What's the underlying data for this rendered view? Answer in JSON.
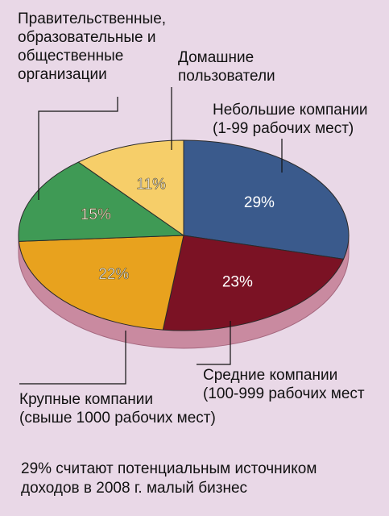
{
  "chart_data": {
    "type": "pie",
    "style": "3d",
    "slices": [
      {
        "key": "small",
        "label": "Небольшие компании\n(1-99 рабочих мест)",
        "value": 29,
        "value_label": "29%",
        "color": "#3a5a8c"
      },
      {
        "key": "medium",
        "label": "Средние компании\n(100-999 рабочих мест",
        "value": 23,
        "value_label": "23%",
        "color": "#7b1224"
      },
      {
        "key": "large",
        "label": "Крупные компании\n(свыше 1000 рабочих мест)",
        "value": 22,
        "value_label": "22%",
        "color": "#e8a21e"
      },
      {
        "key": "gov",
        "label": "Правительственные,\nобразовательные и\nобщественные\nорганизации",
        "value": 15,
        "value_label": "15%",
        "color": "#3f9a55"
      },
      {
        "key": "home",
        "label": "Домашние\nпользователи",
        "value": 11,
        "value_label": "11%",
        "color": "#f6ce69"
      }
    ]
  },
  "caption": "29% считают потенциальным источником\nдоходов в 2008 г. малый бизнес",
  "colors": {
    "background": "#e9d8e7",
    "pie_side": "#c98aa0",
    "leader_line": "#111111"
  }
}
